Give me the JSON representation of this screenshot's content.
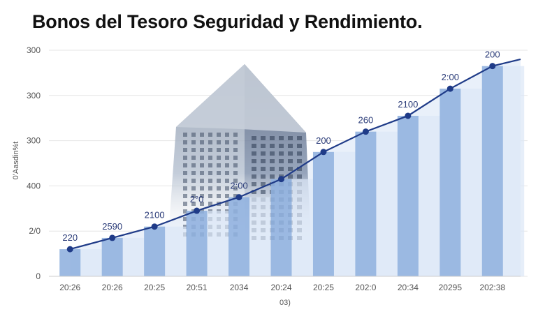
{
  "title": "Bonos del Tesoro Seguridad y Rendimiento.",
  "chart_data": {
    "type": "bar",
    "title": "Bonos del Tesoro Seguridad y Rendimiento.",
    "xlabel": "03)",
    "ylabel": "0'Aasdin%t",
    "categories": [
      "20:26",
      "20:26",
      "20:25",
      "20:51",
      "2034",
      "20:24",
      "20:25",
      "202:0",
      "20:34",
      "20295",
      "202:38"
    ],
    "y_tick_labels": [
      "0",
      "2/0",
      "400",
      "300",
      "300",
      "300"
    ],
    "data_labels": [
      "220",
      "2590",
      "2100",
      "2°0",
      "2:00",
      "",
      "200",
      "260",
      "2100",
      "2:00",
      "200"
    ],
    "values": [
      0.12,
      0.17,
      0.22,
      0.29,
      0.35,
      0.43,
      0.55,
      0.64,
      0.71,
      0.83,
      0.93
    ],
    "ylim": [
      0,
      1
    ],
    "grid": true,
    "legend": "none",
    "colors": {
      "bar": "#8fb0de",
      "bar_alt": "#dce7f6",
      "line": "#1f3b88",
      "point": "#1f3b88",
      "area": "#e9f0fa"
    }
  }
}
